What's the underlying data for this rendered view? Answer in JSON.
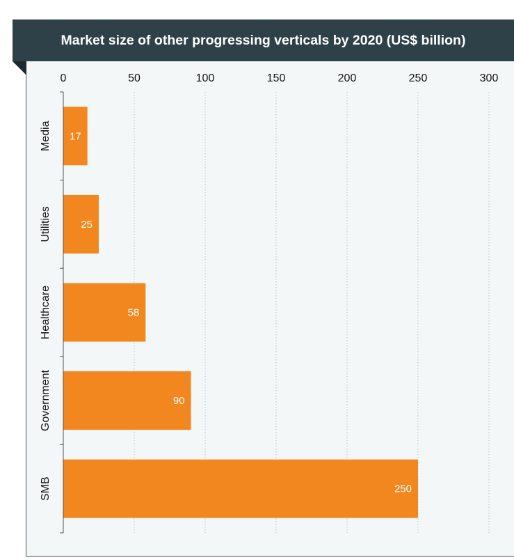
{
  "colors": {
    "bar": "#f28720",
    "banner": "#2e4148",
    "gridline": "#b9c1c4"
  },
  "chart_data": {
    "type": "bar",
    "orientation": "horizontal",
    "title": "Market size of other progressing verticals by 2020 (US$ billion)",
    "categories": [
      "Media",
      "Utilities",
      "Healthcare",
      "Government",
      "SMB"
    ],
    "values": [
      17,
      25,
      58,
      90,
      250
    ],
    "xlim": [
      0,
      300
    ],
    "xticks": [
      0,
      50,
      100,
      150,
      200,
      250,
      300
    ],
    "x_axis_position": "top",
    "grid": "vertical dotted",
    "data_labels": true
  }
}
